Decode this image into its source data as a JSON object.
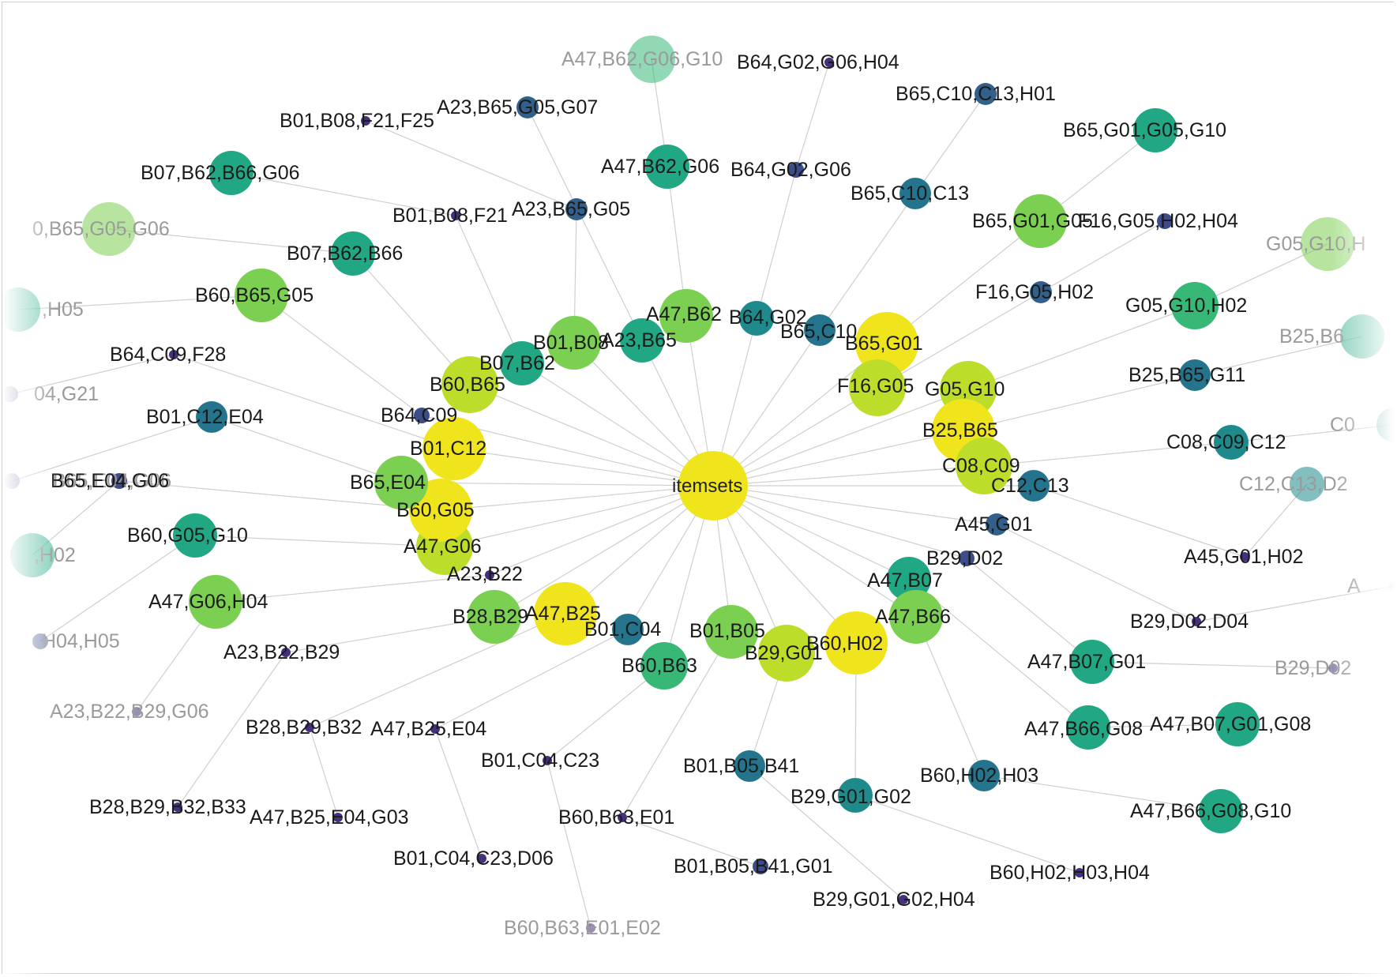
{
  "diagram": {
    "center": "itemsets",
    "colors": {
      "yellow": "#f0e51c",
      "yellow_green": "#bcde2a",
      "light_green": "#7cd051",
      "green": "#37b877",
      "teal_green": "#22a784",
      "teal": "#1f8a8b",
      "teal_dark": "#25748d",
      "blue": "#33608b",
      "navy": "#3c4d8a",
      "purple": "#45307d"
    },
    "level1": [
      {
        "id": "A47,B62",
        "color": "light_green"
      },
      {
        "id": "B64,G02",
        "color": "teal"
      },
      {
        "id": "B65,C10",
        "color": "teal_dark"
      },
      {
        "id": "B65,G01",
        "color": "yellow"
      },
      {
        "id": "F16,G05",
        "color": "yellow_green"
      },
      {
        "id": "G05,G10",
        "color": "yellow_green"
      },
      {
        "id": "B25,B65",
        "color": "yellow"
      },
      {
        "id": "C08,C09",
        "color": "yellow_green"
      },
      {
        "id": "C12,C13",
        "color": "teal_dark"
      },
      {
        "id": "A45,G01",
        "color": "blue"
      },
      {
        "id": "B29,D02",
        "color": "navy"
      },
      {
        "id": "A47,B07",
        "color": "teal_green"
      },
      {
        "id": "A47,B66",
        "color": "light_green"
      },
      {
        "id": "B60,H02",
        "color": "yellow"
      },
      {
        "id": "B29,G01",
        "color": "yellow_green"
      },
      {
        "id": "B01,B05",
        "color": "light_green"
      },
      {
        "id": "B60,B63",
        "color": "green"
      },
      {
        "id": "B01,C04",
        "color": "teal_dark"
      },
      {
        "id": "A47,B25",
        "color": "yellow"
      },
      {
        "id": "B28,B29",
        "color": "light_green"
      },
      {
        "id": "A23,B22",
        "color": "purple"
      },
      {
        "id": "A47,G06",
        "color": "yellow_green"
      },
      {
        "id": "B60,G05",
        "color": "yellow"
      },
      {
        "id": "B65,E04",
        "color": "light_green"
      },
      {
        "id": "B01,C12",
        "color": "yellow"
      },
      {
        "id": "B64,C09",
        "color": "navy"
      },
      {
        "id": "B60,B65",
        "color": "yellow_green"
      },
      {
        "id": "B07,B62",
        "color": "teal_green"
      },
      {
        "id": "B01,B08",
        "color": "light_green"
      },
      {
        "id": "A23,B65",
        "color": "teal_green"
      }
    ],
    "level2": [
      {
        "id": "A47,B62,G06",
        "color": "teal_green"
      },
      {
        "id": "B64,G02,G06",
        "color": "navy"
      },
      {
        "id": "B65,C10,C13",
        "color": "teal_dark"
      },
      {
        "id": "B65,G01,G05",
        "color": "light_green"
      },
      {
        "id": "F16,G05,H02",
        "color": "blue"
      },
      {
        "id": "G05,G10,H02",
        "color": "green"
      },
      {
        "id": "B25,B65,G11",
        "color": "teal_dark"
      },
      {
        "id": "C08,C09,C12",
        "color": "teal"
      },
      {
        "id": "A45,G01,H02",
        "color": "purple"
      },
      {
        "id": "B29,D02,D04",
        "color": "purple"
      },
      {
        "id": "A47,B07,G01",
        "color": "teal_green"
      },
      {
        "id": "A47,B66,G08",
        "color": "teal_green"
      },
      {
        "id": "B60,H02,H03",
        "color": "teal_dark"
      },
      {
        "id": "B29,G01,G02",
        "color": "teal"
      },
      {
        "id": "B01,B05,B41",
        "color": "teal_dark"
      },
      {
        "id": "B60,B63,E01",
        "color": "purple"
      },
      {
        "id": "B01,C04,C23",
        "color": "purple"
      },
      {
        "id": "A47,B25,E04",
        "color": "purple"
      },
      {
        "id": "B28,B29,B32",
        "color": "purple"
      },
      {
        "id": "A23,B22,B29",
        "color": "purple"
      },
      {
        "id": "A47,G06,H04",
        "color": "light_green"
      },
      {
        "id": "B60,G05,G10",
        "color": "teal_green"
      },
      {
        "id": "B65,E04,G06",
        "color": "navy"
      },
      {
        "id": "B01,C12,E04",
        "color": "teal_dark"
      },
      {
        "id": "B64,C09,F28",
        "color": "purple"
      },
      {
        "id": "B60,B65,G05",
        "color": "light_green"
      },
      {
        "id": "B07,B62,B66",
        "color": "teal_green"
      },
      {
        "id": "B01,B08,F21",
        "color": "purple"
      },
      {
        "id": "A23,B65,G05",
        "color": "blue"
      }
    ],
    "level3": [
      {
        "id": "A47,B62,G06,G10",
        "color": "green"
      },
      {
        "id": "B64,G02,G06,H04",
        "color": "purple"
      },
      {
        "id": "B65,C10,C13,H01",
        "color": "blue"
      },
      {
        "id": "B65,G01,G05,G10",
        "color": "teal_green"
      },
      {
        "id": "F16,G05,H02,H04",
        "color": "navy"
      },
      {
        "id": "G05,G10,H",
        "color": "light_green"
      },
      {
        "id": "B25,B6",
        "color": "teal_green"
      },
      {
        "id": "C0",
        "color": "teal"
      },
      {
        "id": "C12,C13,D2",
        "color": "teal"
      },
      {
        "id": "A",
        "color": "purple"
      },
      {
        "id": "B29,D02",
        "color": "purple"
      },
      {
        "id": "A47,B07,G01,G08",
        "color": "teal_green"
      },
      {
        "id": "A47,B66,G08,G10",
        "color": "teal_green"
      },
      {
        "id": "B60,H02,H03,H04",
        "color": "purple"
      },
      {
        "id": "B29,G01,G02,H04",
        "color": "purple"
      },
      {
        "id": "B01,B05,B41,G01",
        "color": "navy"
      },
      {
        "id": "B60,B63,E01,E02",
        "color": "purple"
      },
      {
        "id": "B01,C04,C23,D06",
        "color": "purple"
      },
      {
        "id": "A47,B25,E04,G03",
        "color": "purple"
      },
      {
        "id": "B28,B29,B32,B33",
        "color": "purple"
      },
      {
        "id": "A23,B22,B29,G06",
        "color": "purple"
      },
      {
        "id": "H04,H05",
        "color": "navy"
      },
      {
        "id": ",H02",
        "color": "teal_green"
      },
      {
        "id": "B65,E04,G06",
        "color": "navy"
      },
      {
        "id": "04,G21",
        "color": "navy"
      },
      {
        "id": ",H05",
        "color": "teal_green"
      },
      {
        "id": "0,B65,G05,G06",
        "color": "light_green"
      },
      {
        "id": "B07,B62,B66,G06",
        "color": "teal_green"
      },
      {
        "id": "B01,B08,F21,F25",
        "color": "purple"
      },
      {
        "id": "A23,B65,G05,G07",
        "color": "blue"
      }
    ]
  }
}
